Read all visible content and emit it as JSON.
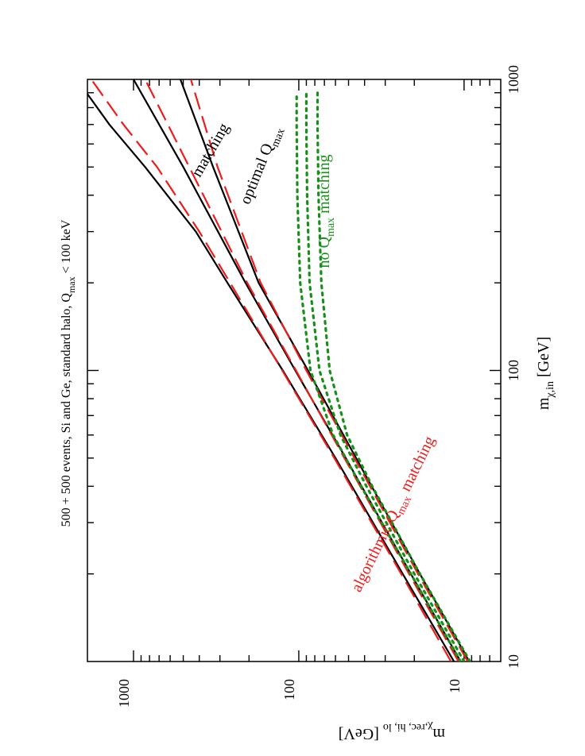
{
  "chart_data": {
    "type": "line",
    "title": "500 + 500 events, Si and Ge, standard halo, Q",
    "title_sub": "max",
    "title_tail": " < 100 keV",
    "xlabel": "m",
    "xlabel_sub": "χ,in",
    "xlabel_unit": " [GeV]",
    "ylabel": "m",
    "ylabel_sub": "χ,rec, hi, lo",
    "ylabel_unit": "  [GeV]",
    "xscale": "log",
    "yscale": "log",
    "xlim": [
      10,
      1000
    ],
    "ylim": [
      6,
      1900
    ],
    "x_ticks": [
      {
        "value": 10,
        "label": "10"
      },
      {
        "value": 100,
        "label": "100"
      },
      {
        "value": 1000,
        "label": "1000"
      }
    ],
    "y_ticks": [
      {
        "value": 10,
        "label": "10"
      },
      {
        "value": 100,
        "label": "100"
      },
      {
        "value": 1000,
        "label": "1000"
      }
    ],
    "colors": {
      "optimal": "#000000",
      "algorithmic": "#ee1c1c",
      "none": "#17901a"
    },
    "series": [
      {
        "name": "optimal upper",
        "group": "optimal",
        "style": "solid",
        "x": [
          10,
          20,
          50,
          100,
          200,
          300,
          500,
          700,
          1000
        ],
        "y": [
          11.5,
          23.5,
          60,
          125,
          270,
          420,
          850,
          1400,
          2200
        ]
      },
      {
        "name": "optimal central",
        "group": "optimal",
        "style": "solid",
        "x": [
          10,
          20,
          50,
          100,
          200,
          500,
          1000
        ],
        "y": [
          10.5,
          21,
          52,
          105,
          210,
          500,
          1000
        ]
      },
      {
        "name": "optimal lower",
        "group": "optimal",
        "style": "solid",
        "x": [
          10,
          20,
          50,
          100,
          200,
          500,
          1000
        ],
        "y": [
          9.3,
          18.5,
          45,
          88,
          175,
          330,
          520
        ]
      },
      {
        "name": "algorithmic upper",
        "group": "algorithmic",
        "style": "dashed",
        "x": [
          10,
          20,
          50,
          100,
          200,
          300,
          500,
          700,
          1000
        ],
        "y": [
          12,
          24,
          61,
          126,
          260,
          400,
          720,
          1150,
          1800
        ]
      },
      {
        "name": "algorithmic central",
        "group": "algorithmic",
        "style": "dashed",
        "x": [
          10,
          20,
          50,
          100,
          200,
          500,
          1000
        ],
        "y": [
          10.8,
          21.5,
          53,
          104,
          205,
          460,
          850
        ]
      },
      {
        "name": "algorithmic lower",
        "group": "algorithmic",
        "style": "dashed",
        "x": [
          10,
          20,
          50,
          100,
          200,
          500,
          1000
        ],
        "y": [
          9.5,
          19,
          46,
          90,
          170,
          310,
          450
        ]
      },
      {
        "name": "no matching upper",
        "group": "none",
        "style": "dotted",
        "x": [
          10,
          20,
          40,
          60,
          100,
          200,
          400,
          700,
          900
        ],
        "y": [
          10.5,
          21,
          42,
          62,
          85,
          98,
          102,
          103,
          103
        ]
      },
      {
        "name": "no matching central",
        "group": "none",
        "style": "dotted",
        "x": [
          10,
          20,
          40,
          60,
          100,
          200,
          400,
          700,
          900
        ],
        "y": [
          10,
          20,
          39,
          56,
          75,
          86,
          89,
          90,
          90
        ]
      },
      {
        "name": "no matching lower",
        "group": "none",
        "style": "dotted",
        "x": [
          10,
          20,
          40,
          60,
          100,
          200,
          400,
          700,
          900
        ],
        "y": [
          9.2,
          18.5,
          36,
          51,
          65,
          73,
          76,
          77,
          77
        ]
      }
    ],
    "annotations": [
      {
        "id": "matching-black",
        "text": "matching",
        "sub": "",
        "tail": "",
        "color": "#000000"
      },
      {
        "id": "optimal",
        "text": "optimal Q",
        "sub": "max",
        "tail": "",
        "color": "#000000"
      },
      {
        "id": "no-qmax",
        "text": "no Q",
        "sub": "max",
        "tail": "  matching",
        "color": "#17901a"
      },
      {
        "id": "algorithmic",
        "text": "algorithmic Q",
        "sub": "max",
        "tail": "  matching",
        "color": "#ee1c1c"
      }
    ]
  }
}
